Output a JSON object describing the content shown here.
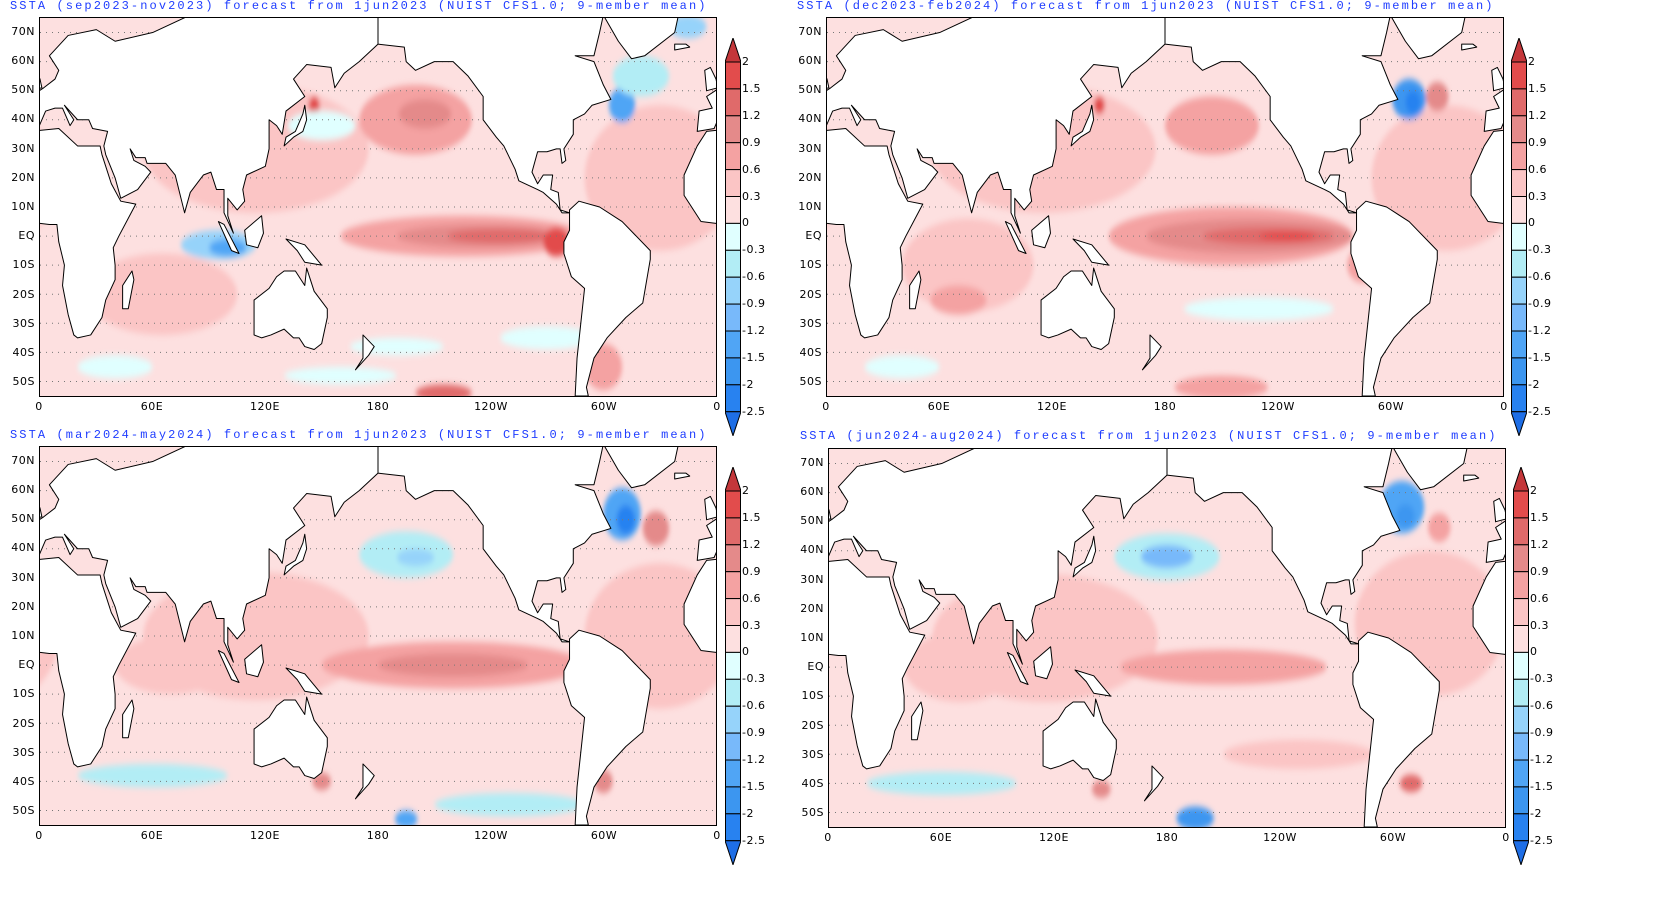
{
  "colorbar": {
    "levels": [
      "2",
      "1.5",
      "1.2",
      "0.9",
      "0.6",
      "0.3",
      "0",
      "-0.3",
      "-0.6",
      "-0.9",
      "-1.2",
      "-1.5",
      "-2",
      "-2.5"
    ],
    "thresholds": [
      2,
      1.5,
      1.2,
      0.9,
      0.6,
      0.3,
      0,
      -0.3,
      -0.6,
      -0.9,
      -1.2,
      -1.5,
      -2,
      -2.5
    ],
    "colors": [
      "#c4373a",
      "#e24c4c",
      "#e06a6a",
      "#e48a8a",
      "#f4a2a2",
      "#fbc5c5",
      "#fde0e0",
      "#e0ffff",
      "#b2edf5",
      "#96d3fa",
      "#78b9fa",
      "#50a5f5",
      "#3c96f0",
      "#2882f0",
      "#1e6ee6"
    ]
  },
  "axes": {
    "lat_labels": [
      "70N",
      "60N",
      "50N",
      "40N",
      "30N",
      "20N",
      "10N",
      "EQ",
      "10S",
      "20S",
      "30S",
      "40S",
      "50S"
    ],
    "lon_labels": [
      "0",
      "60E",
      "120E",
      "180",
      "120W",
      "60W",
      "0"
    ]
  },
  "panels": [
    {
      "title": "SSTA (sep2023-nov2023) forecast from 1jun2023 (NUIST CFS1.0; 9-member mean)",
      "features": [
        {
          "lon": 115,
          "lat": 30,
          "rlon": 60,
          "rlat": 22,
          "v": 0.4
        },
        {
          "lon": 330,
          "lat": 20,
          "rlon": 40,
          "rlat": 25,
          "v": 0.4
        },
        {
          "lon": 65,
          "lat": -20,
          "rlon": 40,
          "rlat": 14,
          "v": 0.4
        },
        {
          "lon": 200,
          "lat": 40,
          "rlon": 30,
          "rlat": 12,
          "v": 0.7
        },
        {
          "lon": 205,
          "lat": 42,
          "rlon": 14,
          "rlat": 5,
          "v": 1.0
        },
        {
          "lon": 225,
          "lat": 0,
          "rlon": 65,
          "rlat": 7,
          "v": 0.7
        },
        {
          "lon": 235,
          "lat": 0,
          "rlon": 45,
          "rlat": 4,
          "v": 1.0
        },
        {
          "lon": 245,
          "lat": 0,
          "rlon": 28,
          "rlat": 2.5,
          "v": 1.3
        },
        {
          "lon": 275,
          "lat": -2,
          "rlon": 7,
          "rlat": 5,
          "v": 1.6
        },
        {
          "lon": 95,
          "lat": -3,
          "rlon": 20,
          "rlat": 5,
          "v": -0.7
        },
        {
          "lon": 100,
          "lat": -4,
          "rlon": 10,
          "rlat": 3,
          "v": -1.3
        },
        {
          "lon": 146,
          "lat": 45,
          "rlon": 3,
          "rlat": 3,
          "v": 1.6
        },
        {
          "lon": 150,
          "lat": 38,
          "rlon": 18,
          "rlat": 5,
          "v": -0.2
        },
        {
          "lon": 310,
          "lat": 45,
          "rlon": 7,
          "rlat": 6,
          "v": -1.3
        },
        {
          "lon": 320,
          "lat": 55,
          "rlon": 15,
          "rlat": 7,
          "v": -0.5
        },
        {
          "lon": 345,
          "lat": 72,
          "rlon": 10,
          "rlat": 4,
          "v": -0.7
        },
        {
          "lon": 215,
          "lat": -54,
          "rlon": 15,
          "rlat": 3,
          "v": 1.3
        },
        {
          "lon": 190,
          "lat": -38,
          "rlon": 25,
          "rlat": 3,
          "v": -0.2
        },
        {
          "lon": 270,
          "lat": -35,
          "rlon": 25,
          "rlat": 4,
          "v": -0.2
        },
        {
          "lon": 300,
          "lat": -45,
          "rlon": 10,
          "rlat": 8,
          "v": 0.7
        },
        {
          "lon": 40,
          "lat": -45,
          "rlon": 20,
          "rlat": 4,
          "v": -0.2
        },
        {
          "lon": 160,
          "lat": -48,
          "rlon": 30,
          "rlat": 3,
          "v": -0.2
        }
      ]
    },
    {
      "title": "SSTA (dec2023-feb2024) forecast from 1jun2023 (NUIST CFS1.0; 9-member mean)",
      "features": [
        {
          "lon": 115,
          "lat": 30,
          "rlon": 60,
          "rlat": 22,
          "v": 0.4
        },
        {
          "lon": 330,
          "lat": 20,
          "rlon": 40,
          "rlat": 25,
          "v": 0.4
        },
        {
          "lon": 75,
          "lat": -10,
          "rlon": 35,
          "rlat": 16,
          "v": 0.5
        },
        {
          "lon": 205,
          "lat": 38,
          "rlon": 25,
          "rlat": 10,
          "v": 0.7
        },
        {
          "lon": 215,
          "lat": 0,
          "rlon": 65,
          "rlat": 10,
          "v": 0.8
        },
        {
          "lon": 225,
          "lat": 0,
          "rlon": 55,
          "rlat": 6,
          "v": 1.0
        },
        {
          "lon": 235,
          "lat": 0,
          "rlon": 35,
          "rlat": 3,
          "v": 1.3
        },
        {
          "lon": 245,
          "lat": 0,
          "rlon": 15,
          "rlat": 1.5,
          "v": 1.6
        },
        {
          "lon": 145,
          "lat": 45,
          "rlon": 3,
          "rlat": 3,
          "v": 1.6
        },
        {
          "lon": 320,
          "lat": 73,
          "rlon": 10,
          "rlat": 4,
          "v": 2.2
        },
        {
          "lon": 310,
          "lat": 47,
          "rlon": 9,
          "rlat": 7,
          "v": -1.6
        },
        {
          "lon": 312,
          "lat": 46,
          "rlon": 4,
          "rlat": 4,
          "v": -2.2
        },
        {
          "lon": 325,
          "lat": 48,
          "rlon": 6,
          "rlat": 5,
          "v": 1.0
        },
        {
          "lon": 230,
          "lat": -25,
          "rlon": 40,
          "rlat": 4,
          "v": -0.2
        },
        {
          "lon": 70,
          "lat": -22,
          "rlon": 15,
          "rlat": 5,
          "v": 0.9
        },
        {
          "lon": 210,
          "lat": -52,
          "rlon": 25,
          "rlat": 4,
          "v": 0.7
        },
        {
          "lon": 285,
          "lat": -10,
          "rlon": 8,
          "rlat": 6,
          "v": 0.7
        },
        {
          "lon": 40,
          "lat": -45,
          "rlon": 20,
          "rlat": 4,
          "v": -0.2
        }
      ]
    },
    {
      "title": "SSTA (mar2024-may2024) forecast from 1jun2023 (NUIST CFS1.0; 9-member mean)",
      "features": [
        {
          "lon": 115,
          "lat": 10,
          "rlon": 60,
          "rlat": 22,
          "v": 0.4
        },
        {
          "lon": 330,
          "lat": 10,
          "rlon": 40,
          "rlat": 25,
          "v": 0.4
        },
        {
          "lon": 70,
          "lat": 0,
          "rlon": 30,
          "rlat": 10,
          "v": 0.5
        },
        {
          "lon": 195,
          "lat": 38,
          "rlon": 25,
          "rlat": 8,
          "v": -0.4
        },
        {
          "lon": 200,
          "lat": 37,
          "rlon": 10,
          "rlat": 3,
          "v": -0.7
        },
        {
          "lon": 220,
          "lat": 0,
          "rlon": 70,
          "rlat": 8,
          "v": 0.8
        },
        {
          "lon": 220,
          "lat": 0,
          "rlon": 40,
          "rlat": 4,
          "v": 1.0
        },
        {
          "lon": 310,
          "lat": 52,
          "rlon": 10,
          "rlat": 9,
          "v": -1.3
        },
        {
          "lon": 312,
          "lat": 50,
          "rlon": 5,
          "rlat": 5,
          "v": -2.2
        },
        {
          "lon": 328,
          "lat": 47,
          "rlon": 7,
          "rlat": 6,
          "v": 1.2
        },
        {
          "lon": 195,
          "lat": -53,
          "rlon": 6,
          "rlat": 3,
          "v": -1.3
        },
        {
          "lon": 60,
          "lat": -38,
          "rlon": 40,
          "rlat": 4,
          "v": -0.3
        },
        {
          "lon": 250,
          "lat": -48,
          "rlon": 40,
          "rlat": 4,
          "v": -0.3
        },
        {
          "lon": 300,
          "lat": -40,
          "rlon": 5,
          "rlat": 4,
          "v": 1.0
        },
        {
          "lon": 150,
          "lat": -40,
          "rlon": 5,
          "rlat": 3,
          "v": 1.0
        }
      ]
    },
    {
      "title": "SSTA (jun2024-aug2024) forecast from 1jun2023 (NUIST CFS1.0; 9-member mean)",
      "features": [
        {
          "lon": 115,
          "lat": 10,
          "rlon": 60,
          "rlat": 22,
          "v": 0.4
        },
        {
          "lon": 320,
          "lat": 15,
          "rlon": 40,
          "rlat": 25,
          "v": 0.4
        },
        {
          "lon": 70,
          "lat": 0,
          "rlon": 30,
          "rlat": 12,
          "v": 0.5
        },
        {
          "lon": 180,
          "lat": 38,
          "rlon": 28,
          "rlat": 8,
          "v": -0.5
        },
        {
          "lon": 180,
          "lat": 38,
          "rlon": 14,
          "rlat": 4,
          "v": -0.9
        },
        {
          "lon": 210,
          "lat": 0,
          "rlon": 55,
          "rlat": 6,
          "v": 0.7
        },
        {
          "lon": 205,
          "lat": 0,
          "rlon": 25,
          "rlat": 3,
          "v": 0.9
        },
        {
          "lon": 305,
          "lat": 55,
          "rlon": 12,
          "rlat": 9,
          "v": -1.3
        },
        {
          "lon": 307,
          "lat": 52,
          "rlon": 5,
          "rlat": 4,
          "v": -1.6
        },
        {
          "lon": 325,
          "lat": 48,
          "rlon": 6,
          "rlat": 5,
          "v": 0.9
        },
        {
          "lon": 195,
          "lat": -52,
          "rlon": 10,
          "rlat": 4,
          "v": -1.5
        },
        {
          "lon": 310,
          "lat": -40,
          "rlon": 6,
          "rlat": 3,
          "v": 1.3
        },
        {
          "lon": 145,
          "lat": -42,
          "rlon": 5,
          "rlat": 3,
          "v": 1.0
        },
        {
          "lon": 60,
          "lat": -40,
          "rlon": 40,
          "rlat": 4,
          "v": -0.3
        },
        {
          "lon": 250,
          "lat": -30,
          "rlon": 40,
          "rlat": 5,
          "v": 0.5
        }
      ]
    }
  ]
}
